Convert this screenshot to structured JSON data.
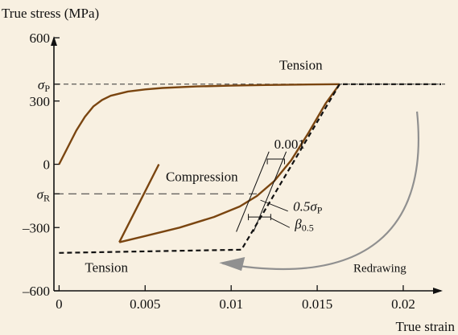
{
  "chart_data": {
    "type": "line",
    "title": "",
    "xlabel": "True strain",
    "ylabel": "True stress (MPa)",
    "xlim": [
      -0.0003,
      0.0222
    ],
    "ylim": [
      -600,
      600
    ],
    "xticks": [
      {
        "value": 0,
        "label": "0"
      },
      {
        "value": 0.005,
        "label": "0.005"
      },
      {
        "value": 0.01,
        "label": "0.01"
      },
      {
        "value": 0.015,
        "label": "0.015"
      },
      {
        "value": 0.02,
        "label": "0.02"
      }
    ],
    "yticks": [
      {
        "value": 600,
        "label": "600"
      },
      {
        "value": 300,
        "label": "300"
      },
      {
        "value": 0,
        "label": "0"
      },
      {
        "value": -300,
        "label": "–300"
      },
      {
        "value": -600,
        "label": "–600"
      }
    ],
    "ysymbols": [
      {
        "value": 380,
        "base": "σ",
        "sub": "P"
      },
      {
        "value": -140,
        "base": "σ",
        "sub": "R"
      }
    ],
    "grid": false,
    "series": [
      {
        "style": "solid",
        "color": "#7a4510",
        "x": [
          0,
          0.0005,
          0.001,
          0.0015,
          0.002,
          0.0025,
          0.003,
          0.004,
          0.005,
          0.006,
          0.008,
          0.01,
          0.012,
          0.014,
          0.0163
        ],
        "y": [
          0,
          80,
          160,
          225,
          275,
          305,
          325,
          345,
          355,
          362,
          369,
          373,
          376,
          378,
          380
        ]
      },
      {
        "style": "solid",
        "color": "#7a4510",
        "x": [
          0.0058,
          0.0035
        ],
        "y": [
          0,
          -370
        ]
      },
      {
        "style": "solid",
        "color": "#7a4510",
        "x": [
          0.0035,
          0.005,
          0.007,
          0.009,
          0.0105,
          0.0115,
          0.0125,
          0.0135,
          0.0145,
          0.0155,
          0.0163
        ],
        "y": [
          -370,
          -340,
          -300,
          -250,
          -200,
          -150,
          -80,
          20,
          150,
          290,
          380
        ]
      },
      {
        "style": "dashed",
        "color": "#111111",
        "x": [
          0,
          0.0106,
          0.0163,
          0.0222
        ],
        "y": [
          -420,
          -405,
          380,
          380
        ]
      }
    ],
    "annotations": [
      {
        "text": "Tension",
        "x": 0.0128,
        "y": 450
      },
      {
        "text": "Compression",
        "x": 0.0062,
        "y": -80
      },
      {
        "text": "Tension",
        "x": 0.0015,
        "y": -510
      },
      {
        "text": "Redrawing",
        "x": 0.0171,
        "y": -510
      },
      {
        "text": "0.001",
        "x": 0.0125,
        "y": 75
      }
    ],
    "labeled_symbols": [
      {
        "base": "0.5σ",
        "sub": "P",
        "x": 0.0136,
        "y": -220
      },
      {
        "base": "β",
        "sub": "0.5",
        "x": 0.0137,
        "y": -305
      }
    ],
    "colors": {
      "background": "#f8f0e1",
      "curve": "#7a4510",
      "dashed": "#111111",
      "arrow": "#909090"
    }
  }
}
